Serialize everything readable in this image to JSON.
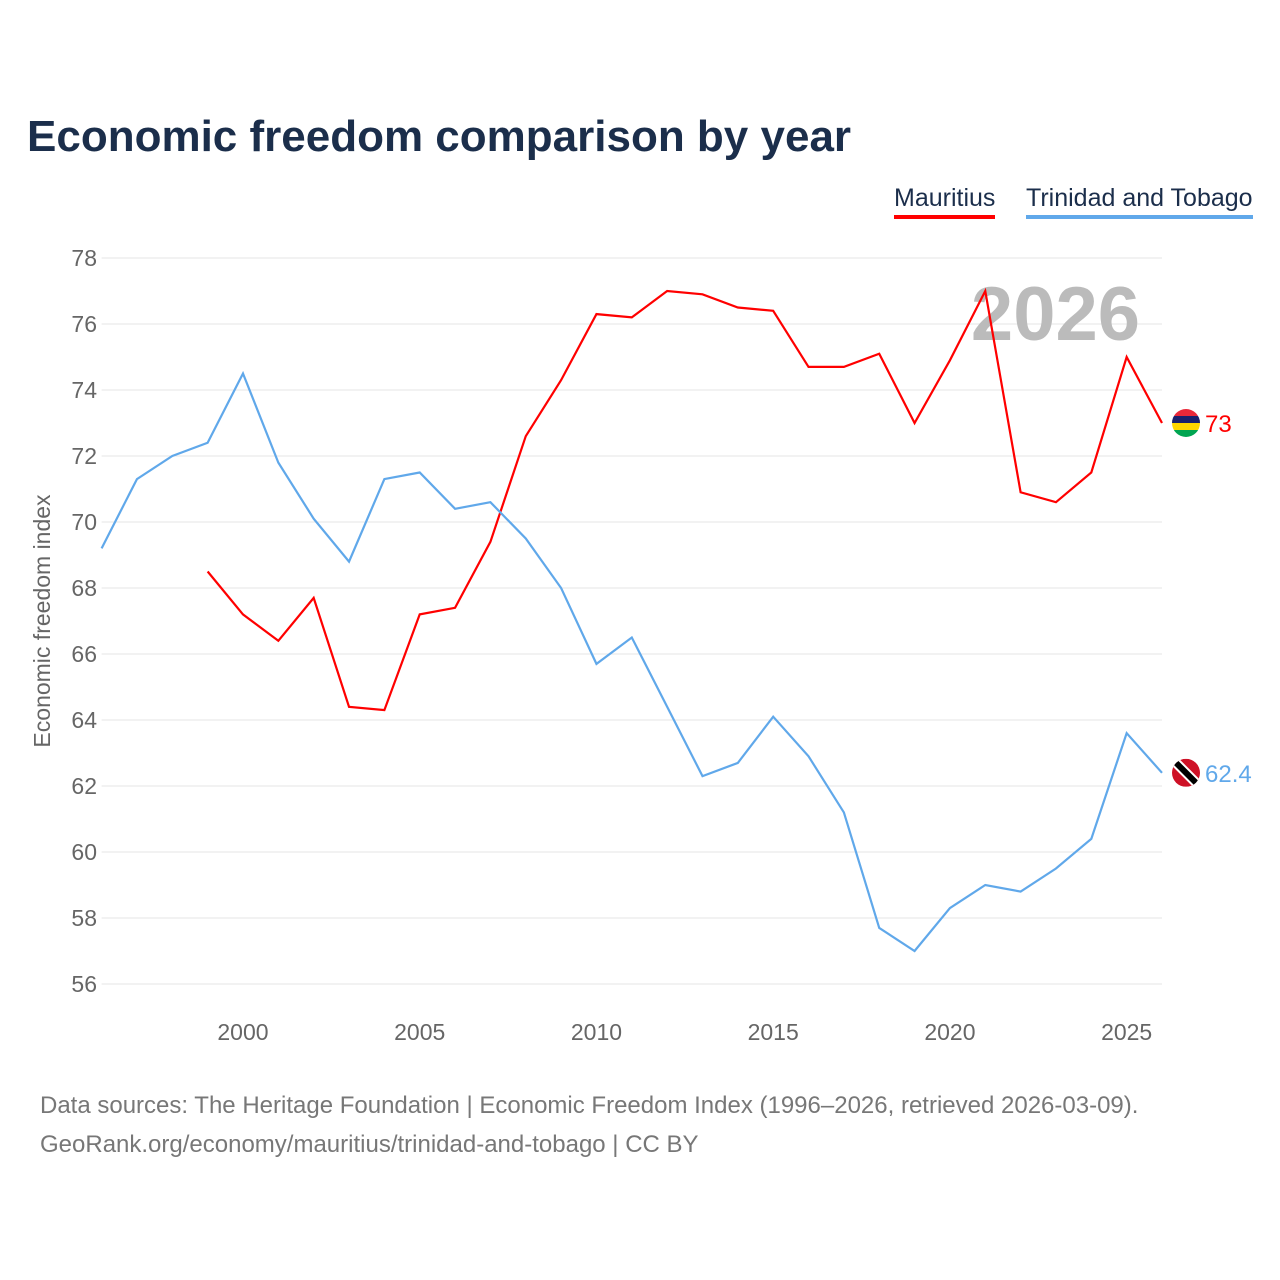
{
  "title": "Economic freedom comparison by year",
  "footer": {
    "line1": "Data sources: The Heritage Foundation | Economic Freedom Index (1996–2026, retrieved 2026-03-09).",
    "line2": "GeoRank.org/economy/mauritius/trinidad-and-tobago | CC BY"
  },
  "chart_data": {
    "type": "line",
    "title": "Economic freedom comparison by year",
    "ylabel": "Economic freedom index",
    "xlabel": "",
    "xlim": [
      1996,
      2026
    ],
    "ylim": [
      56,
      78
    ],
    "grid": true,
    "legend": "top-right",
    "year_watermark": "2026",
    "xticks": [
      2000,
      2005,
      2010,
      2015,
      2020,
      2025
    ],
    "yticks": [
      56,
      58,
      60,
      62,
      64,
      66,
      68,
      70,
      72,
      74,
      76,
      78
    ],
    "series": [
      {
        "name": "Mauritius",
        "color": "#ff0000",
        "end_label": "73",
        "x": [
          1999,
          2000,
          2001,
          2002,
          2003,
          2004,
          2005,
          2006,
          2007,
          2008,
          2009,
          2010,
          2011,
          2012,
          2013,
          2014,
          2015,
          2016,
          2017,
          2018,
          2019,
          2020,
          2021,
          2022,
          2023,
          2024,
          2025,
          2026
        ],
        "values": [
          68.5,
          67.2,
          66.4,
          67.7,
          64.4,
          64.3,
          67.2,
          67.4,
          69.4,
          72.6,
          74.3,
          76.3,
          76.2,
          77.0,
          76.9,
          76.5,
          76.4,
          74.7,
          74.7,
          75.1,
          73.0,
          74.9,
          77.0,
          70.9,
          70.6,
          71.5,
          75.0,
          73.0
        ]
      },
      {
        "name": "Trinidad and Tobago",
        "color": "#60a8ea",
        "end_label": "62.4",
        "x": [
          1996,
          1997,
          1998,
          1999,
          2000,
          2001,
          2002,
          2003,
          2004,
          2005,
          2006,
          2007,
          2008,
          2009,
          2010,
          2011,
          2012,
          2013,
          2014,
          2015,
          2016,
          2017,
          2018,
          2019,
          2020,
          2021,
          2022,
          2023,
          2024,
          2025,
          2026
        ],
        "values": [
          69.2,
          71.3,
          72.0,
          72.4,
          74.5,
          71.8,
          70.1,
          68.8,
          71.3,
          71.5,
          70.4,
          70.6,
          69.5,
          68.0,
          65.7,
          66.5,
          64.4,
          62.3,
          62.7,
          64.1,
          62.9,
          61.2,
          57.7,
          57.0,
          58.3,
          59.0,
          58.8,
          59.5,
          60.4,
          63.6,
          62.4
        ]
      }
    ]
  }
}
